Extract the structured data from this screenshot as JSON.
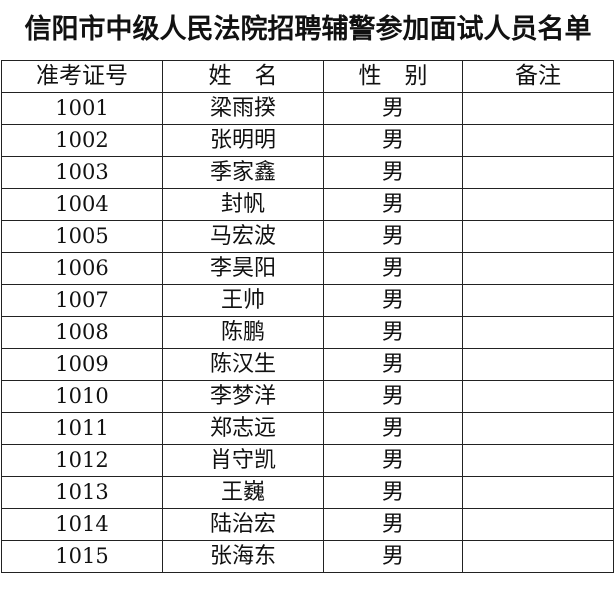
{
  "title": "信阳市中级人民法院招聘辅警参加面试人员名单",
  "headers": [
    "准考证号",
    "姓　名",
    "性　别",
    "备注"
  ],
  "rows": [
    {
      "id": "1001",
      "name": "梁雨揆",
      "gender": "男",
      "note": ""
    },
    {
      "id": "1002",
      "name": "张明明",
      "gender": "男",
      "note": ""
    },
    {
      "id": "1003",
      "name": "季家鑫",
      "gender": "男",
      "note": ""
    },
    {
      "id": "1004",
      "name": "封帆",
      "gender": "男",
      "note": ""
    },
    {
      "id": "1005",
      "name": "马宏波",
      "gender": "男",
      "note": ""
    },
    {
      "id": "1006",
      "name": "李昊阳",
      "gender": "男",
      "note": ""
    },
    {
      "id": "1007",
      "name": "王帅",
      "gender": "男",
      "note": ""
    },
    {
      "id": "1008",
      "name": "陈鹏",
      "gender": "男",
      "note": ""
    },
    {
      "id": "1009",
      "name": "陈汉生",
      "gender": "男",
      "note": ""
    },
    {
      "id": "1010",
      "name": "李梦洋",
      "gender": "男",
      "note": ""
    },
    {
      "id": "1011",
      "name": "郑志远",
      "gender": "男",
      "note": ""
    },
    {
      "id": "1012",
      "name": "肖守凯",
      "gender": "男",
      "note": ""
    },
    {
      "id": "1013",
      "name": "王巍",
      "gender": "男",
      "note": ""
    },
    {
      "id": "1014",
      "name": "陆治宏",
      "gender": "男",
      "note": ""
    },
    {
      "id": "1015",
      "name": "张海东",
      "gender": "男",
      "note": ""
    }
  ]
}
